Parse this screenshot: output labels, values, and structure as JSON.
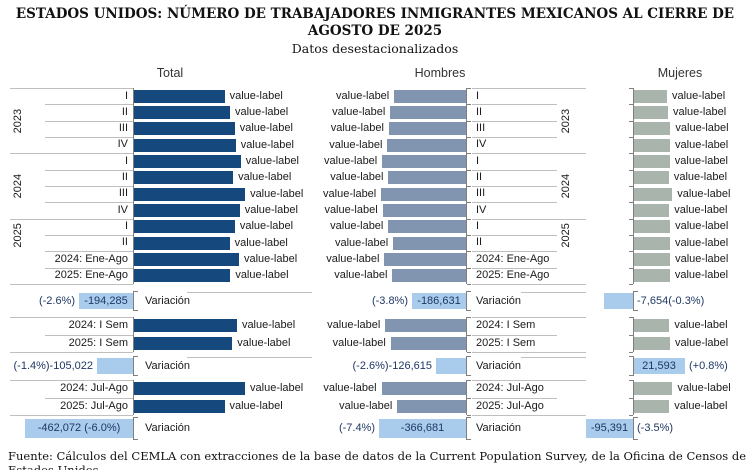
{
  "title": {
    "line1": "ESTADOS UNIDOS: NÚMERO DE TRABAJADORES INMIGRANTES MEXICANOS AL CIERRE DE",
    "line2": "AGOSTO DE 2025",
    "subtitle": "Datos desestacionalizados"
  },
  "footer": "Fuente: Cálculos del CEMLA con extracciones de la base de datos de la Current Population Survey, de la Oficina de Censos de Estados Unidos.",
  "labels": {
    "variacion": "Variación"
  },
  "colors": {
    "total_bar": "#15497D",
    "hombres_bar": "#8295B0",
    "mujeres_bar": "#A8B4AC",
    "variacion_bar": "#A9CBEC",
    "variacion_text": "#1F3864",
    "axis": "#7F7F7F",
    "grid": "#BFBFBF",
    "text": "#1A1A1A"
  },
  "chart_data": [
    {
      "type": "bar",
      "title": "Total",
      "year_groups": [
        {
          "year": "2023",
          "quarters": [
            "I",
            "II",
            "III",
            "IV"
          ]
        },
        {
          "year": "2024",
          "quarters": [
            "I",
            "II",
            "III",
            "IV"
          ]
        },
        {
          "year": "2025",
          "quarters": [
            "I",
            "II"
          ]
        }
      ],
      "extra_rows": [
        "2024: Ene-Ago",
        "2025: Ene-Ago"
      ],
      "quarterly_values": [
        7210714,
        7332150,
        7438598,
        7462342,
        7575347,
        7401866,
        7671513,
        7551135,
        7442487,
        7324681,
        7534161,
        7339876
      ],
      "variacion_eneago": {
        "value": -194285,
        "pct": "(-2.6%)"
      },
      "sem_labels": [
        "2024: I Sem",
        "2025: I Sem"
      ],
      "sem_values": [
        7488606,
        7383584
      ],
      "variacion_sem": {
        "value": -105022,
        "pct": "(-1.4%)"
      },
      "julago_labels": [
        "2024: Jul-Ago",
        "2025: Jul-Ago"
      ],
      "julago_values": [
        7670825,
        7208753
      ],
      "variacion_julago": {
        "value": -462072,
        "pct": "(-6.0%)"
      }
    },
    {
      "type": "bar",
      "title": "Hombres",
      "year_groups": [
        {
          "year": "2023",
          "quarters": [
            "I",
            "II",
            "III",
            "IV"
          ]
        },
        {
          "year": "2024",
          "quarters": [
            "I",
            "II",
            "III",
            "IV"
          ]
        },
        {
          "year": "2025",
          "quarters": [
            "I",
            "II"
          ]
        }
      ],
      "extra_rows": [
        "2024: Ene-Ago",
        "2025: Ene-Ago"
      ],
      "quarterly_values": [
        4631680,
        4722780,
        4755968,
        4790596,
        4911292,
        4766416,
        4934661,
        4902155,
        4768396,
        4656082,
        4860834,
        4674203
      ],
      "variacion_eneago": {
        "value": -186631,
        "pct": "(-3.8%)"
      },
      "sem_labels": [
        "2024: I Sem",
        "2025: I Sem"
      ],
      "sem_values": [
        4838854,
        4712239
      ],
      "variacion_sem": {
        "value": -126615,
        "pct": "(-2.6%)"
      },
      "julago_labels": [
        "2024: Jul-Ago",
        "2025: Jul-Ago"
      ],
      "julago_values": [
        4926776,
        4560095
      ],
      "variacion_julago": {
        "value": -366681,
        "pct": "(-7.4%)"
      }
    },
    {
      "type": "bar",
      "title": "Mujeres",
      "year_groups": [
        {
          "year": "2023",
          "quarters": [
            "I",
            "II",
            "III",
            "IV"
          ]
        },
        {
          "year": "2024",
          "quarters": [
            "I",
            "II",
            "III",
            "IV"
          ]
        },
        {
          "year": "2025",
          "quarters": [
            "I",
            "II"
          ]
        }
      ],
      "extra_rows": [
        "2024: Ene-Ago",
        "2025: Ene-Ago"
      ],
      "quarterly_values": [
        2579034,
        2609370,
        2682630,
        2671746,
        2664055,
        2635450,
        2736852,
        2648980,
        2674091,
        2668599,
        2673327,
        2665673
      ],
      "variacion_eneago": {
        "value": -7654,
        "pct": "(-0.3%)"
      },
      "sem_labels": [
        "2024: I Sem",
        "2025: I Sem"
      ],
      "sem_values": [
        2649752,
        2671345
      ],
      "variacion_sem": {
        "value": 21593,
        "pct": "(+0.8%)"
      },
      "julago_labels": [
        "2024: Jul-Ago",
        "2025: Jul-Ago"
      ],
      "julago_values": [
        2744049,
        2648658
      ],
      "variacion_julago": {
        "value": -95391,
        "pct": "(-3.5%)"
      }
    }
  ]
}
